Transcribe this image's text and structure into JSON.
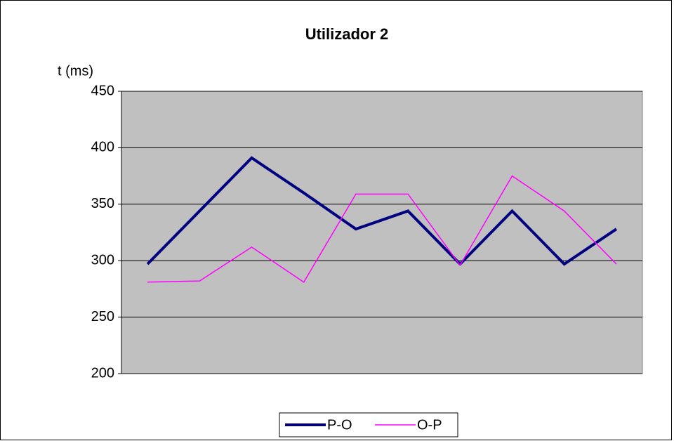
{
  "chart_data": {
    "type": "line",
    "title": "Utilizador 2",
    "y_label": "t (ms)",
    "categories": [
      null,
      null,
      null,
      null,
      null,
      null,
      null,
      null,
      null,
      null
    ],
    "series": [
      {
        "name": "P-O",
        "color": "#000080",
        "values": [
          297,
          344,
          391,
          360,
          328,
          344,
          297,
          344,
          297,
          328
        ]
      },
      {
        "name": "O-P",
        "color": "#ff00ff",
        "values": [
          281,
          282,
          312,
          281,
          359,
          359,
          296,
          375,
          344,
          297
        ]
      }
    ],
    "ylim": [
      200,
      450
    ],
    "yticks": [
      200,
      250,
      300,
      350,
      400,
      450
    ],
    "grid": true,
    "legend": "bottom"
  }
}
